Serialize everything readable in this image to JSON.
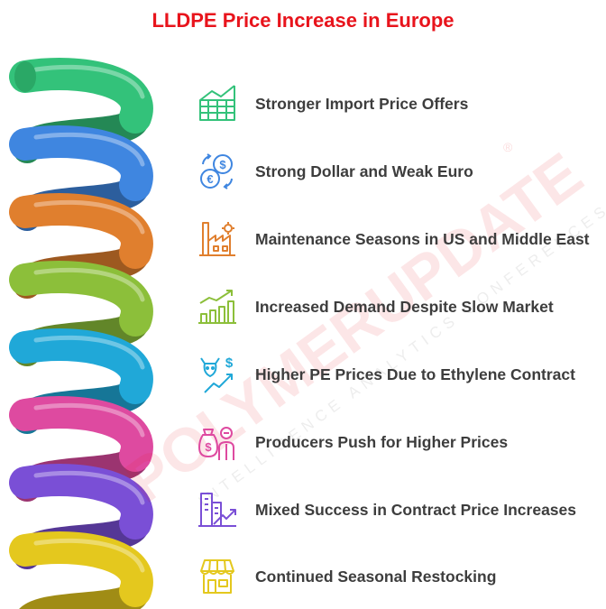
{
  "title": "LLDPE Price Increase in Europe",
  "colors": {
    "title": "#e8141c",
    "text": "#3d3d3d",
    "band_colors": [
      "#33c27a",
      "#3f86e0",
      "#e07f2e",
      "#8cbf3a",
      "#20a8d8",
      "#de4aa0",
      "#7a4fd6",
      "#e4c81e"
    ]
  },
  "watermark": {
    "brand": "POLYMERUPDATE",
    "tagline": "INTELLIGENCE  ANALYTICS  CONFERENCES",
    "mark": "®"
  },
  "items": [
    {
      "label": "Stronger Import Price Offers",
      "icon": "price-grid-chart-icon",
      "color": "#33c27a"
    },
    {
      "label": "Strong Dollar and Weak Euro",
      "icon": "currency-exchange-icon",
      "color": "#3f86e0"
    },
    {
      "label": "Maintenance Seasons in US and Middle East",
      "icon": "factory-maintenance-icon",
      "color": "#e07f2e"
    },
    {
      "label": "Increased Demand Despite Slow Market",
      "icon": "growth-bar-chart-icon",
      "color": "#8cbf3a"
    },
    {
      "label": "Higher PE Prices Due to Ethylene Contract",
      "icon": "bull-price-trend-icon",
      "color": "#20a8d8"
    },
    {
      "label": "Producers Push for Higher Prices",
      "icon": "producer-money-icon",
      "color": "#de4aa0"
    },
    {
      "label": "Mixed Success in Contract Price Increases",
      "icon": "building-growth-icon",
      "color": "#7a4fd6"
    },
    {
      "label": "Continued Seasonal Restocking",
      "icon": "storefront-icon",
      "color": "#e4c81e"
    }
  ]
}
